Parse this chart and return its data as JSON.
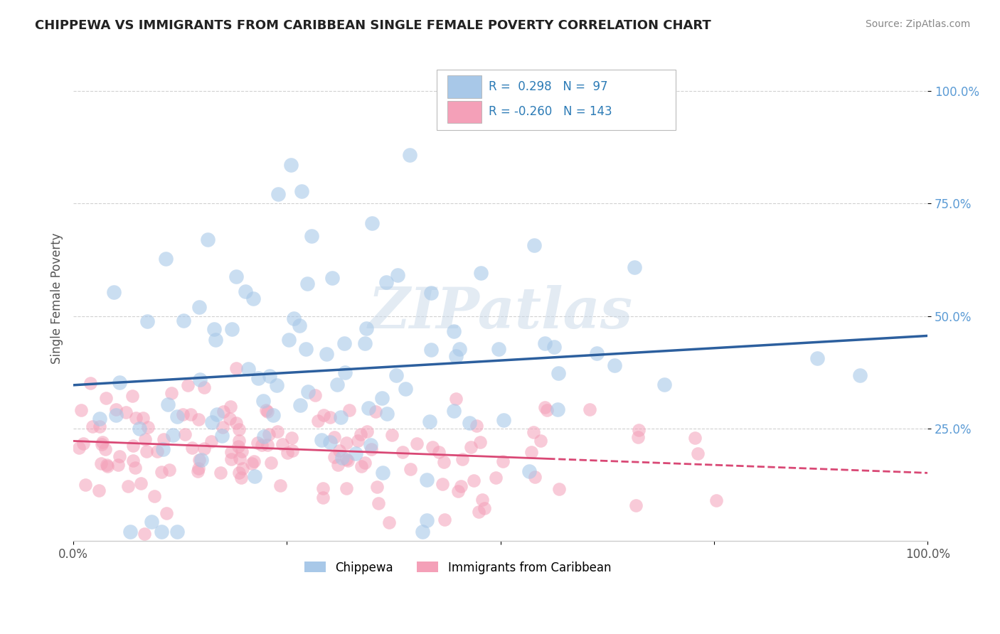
{
  "title": "CHIPPEWA VS IMMIGRANTS FROM CARIBBEAN SINGLE FEMALE POVERTY CORRELATION CHART",
  "source": "Source: ZipAtlas.com",
  "ylabel": "Single Female Poverty",
  "legend_r_blue": "0.298",
  "legend_n_blue": "97",
  "legend_r_pink": "-0.260",
  "legend_n_pink": "143",
  "legend_label_blue": "Chippewa",
  "legend_label_pink": "Immigrants from Caribbean",
  "blue_color": "#a8c8e8",
  "pink_color": "#f4a0b8",
  "blue_line_color": "#2c5f9e",
  "pink_line_color": "#d94875",
  "background_color": "#ffffff",
  "watermark": "ZIPatlas",
  "blue_intercept": 0.345,
  "blue_slope": 0.155,
  "pink_intercept": 0.215,
  "pink_slope": -0.055,
  "seed_blue": 42,
  "seed_pink": 123,
  "n_blue": 97,
  "n_pink": 143,
  "dot_size_blue": 220,
  "dot_size_pink": 180
}
